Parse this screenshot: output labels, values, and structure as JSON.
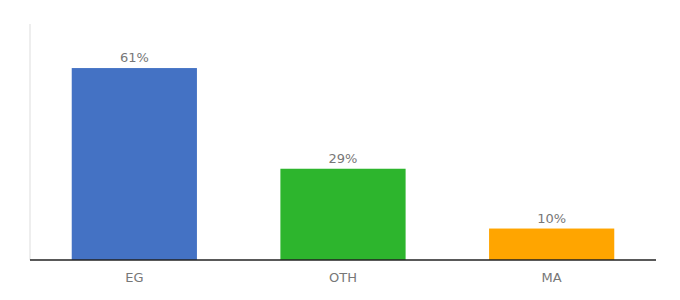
{
  "chart_data": {
    "type": "bar",
    "categories": [
      "EG",
      "OTH",
      "MA"
    ],
    "values": [
      61,
      29,
      10
    ],
    "value_labels": [
      "61%",
      "29%",
      "10%"
    ],
    "colors": [
      "#4472c4",
      "#2db52d",
      "#ffa500"
    ],
    "ylim": [
      0,
      75
    ],
    "data_labels": true,
    "tick_labels": "x"
  }
}
